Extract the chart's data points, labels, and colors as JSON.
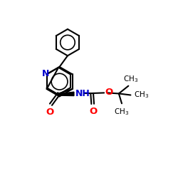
{
  "background": "#ffffff",
  "lc": "#000000",
  "nc": "#0000cd",
  "oc": "#ff0000",
  "lw": 1.5,
  "figsize": [
    2.5,
    2.5
  ],
  "dpi": 100,
  "xlim": [
    -1,
    11
  ],
  "ylim": [
    -1,
    11
  ]
}
